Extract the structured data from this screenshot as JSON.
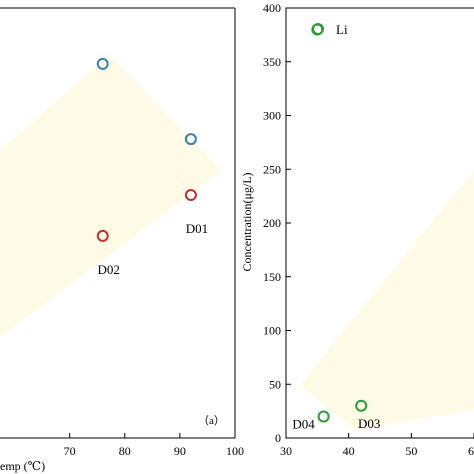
{
  "chart_data": [
    {
      "panel": "a",
      "panel_tag": "（a）",
      "type": "scatter",
      "xlabel": "emp (℃)",
      "x_ticks": [
        70,
        80,
        90,
        100
      ],
      "xlim": [
        57,
        100
      ],
      "ylim": [
        0,
        1
      ],
      "shading_color": "#fffbe6",
      "series": [
        {
          "color": "#3a7fb5",
          "points": [
            {
              "x": 76,
              "y": 0.87
            },
            {
              "x": 92,
              "y": 0.695
            }
          ]
        },
        {
          "color": "#c0302b",
          "points": [
            {
              "x": 76,
              "y": 0.47,
              "label": "D02"
            },
            {
              "x": 92,
              "y": 0.565,
              "label": "D01"
            }
          ]
        }
      ]
    },
    {
      "panel": "b",
      "type": "scatter",
      "ylabel": "Concentration(μg/L)",
      "y_ticks": [
        0,
        50,
        100,
        150,
        200,
        250,
        300,
        350,
        400
      ],
      "ylim": [
        0,
        400
      ],
      "x_ticks": [
        "30",
        "40",
        "50",
        "60"
      ],
      "xlim": [
        30,
        60
      ],
      "shading_color": "#fffbe6",
      "legend": {
        "label": "Li",
        "position": "top-left",
        "color": "#2e9a35"
      },
      "series": [
        {
          "name": "Li",
          "color": "#2e9a35",
          "points": [
            {
              "x": 35,
              "y": 380
            },
            {
              "x": 36,
              "y": 20,
              "label": "D04"
            },
            {
              "x": 42,
              "y": 30,
              "label": "D03"
            }
          ]
        }
      ]
    }
  ]
}
